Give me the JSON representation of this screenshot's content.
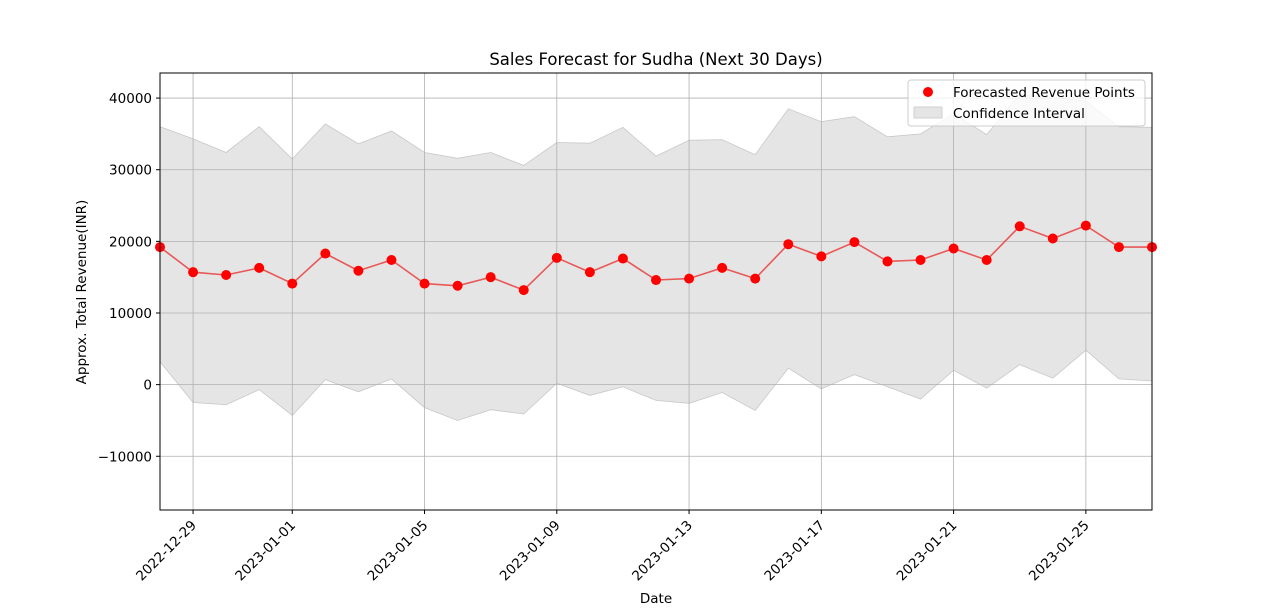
{
  "chart_data": {
    "type": "line",
    "title": "Sales Forecast for Sudha (Next 30 Days)",
    "xlabel": "Date",
    "ylabel": "Approx. Total Revenue(INR)",
    "ylim": [
      -17500,
      43500
    ],
    "xlim": [
      "2022-12-28",
      "2023-01-27"
    ],
    "yticks": [
      -10000,
      0,
      10000,
      20000,
      30000,
      40000
    ],
    "xticks": [
      "2022-12-29",
      "2023-01-01",
      "2023-01-05",
      "2023-01-09",
      "2023-01-13",
      "2023-01-17",
      "2023-01-21",
      "2023-01-25"
    ],
    "grid": true,
    "legend_position": "top-right",
    "dates": [
      "2022-12-28",
      "2022-12-29",
      "2022-12-30",
      "2022-12-31",
      "2023-01-01",
      "2023-01-02",
      "2023-01-03",
      "2023-01-04",
      "2023-01-05",
      "2023-01-06",
      "2023-01-07",
      "2023-01-08",
      "2023-01-09",
      "2023-01-10",
      "2023-01-11",
      "2023-01-12",
      "2023-01-13",
      "2023-01-14",
      "2023-01-15",
      "2023-01-16",
      "2023-01-17",
      "2023-01-18",
      "2023-01-19",
      "2023-01-20",
      "2023-01-21",
      "2023-01-22",
      "2023-01-23",
      "2023-01-24",
      "2023-01-25",
      "2023-01-26",
      "2023-01-27"
    ],
    "series": [
      {
        "name": "Forecasted Revenue Points",
        "color": "#ff0000",
        "line_color": "#e85858",
        "values": [
          19200,
          15700,
          15300,
          16300,
          14100,
          18300,
          15900,
          17400,
          14100,
          13800,
          15000,
          13200,
          17700,
          15700,
          17600,
          14600,
          14800,
          16300,
          14800,
          19600,
          17900,
          19900,
          17200,
          17400,
          19000,
          17400,
          22100,
          20400,
          22200,
          19200,
          19200
        ]
      },
      {
        "name": "Confidence Interval",
        "color": "#d3d3d3",
        "lower": [
          3200,
          -2500,
          -2800,
          -700,
          -4300,
          700,
          -1000,
          800,
          -3200,
          -5000,
          -3500,
          -4100,
          200,
          -1500,
          -300,
          -2200,
          -2600,
          -1100,
          -3600,
          2300,
          -600,
          1400,
          -300,
          -2000,
          2000,
          -500,
          2800,
          900,
          4800,
          800,
          500
        ],
        "upper": [
          36000,
          34300,
          32400,
          36000,
          31500,
          36400,
          33600,
          35400,
          32400,
          31600,
          32400,
          30600,
          33800,
          33700,
          35900,
          31900,
          34100,
          34200,
          32100,
          38500,
          36700,
          37400,
          34600,
          35000,
          37800,
          34900,
          40500,
          40000,
          39600,
          36000,
          35900
        ]
      }
    ]
  }
}
